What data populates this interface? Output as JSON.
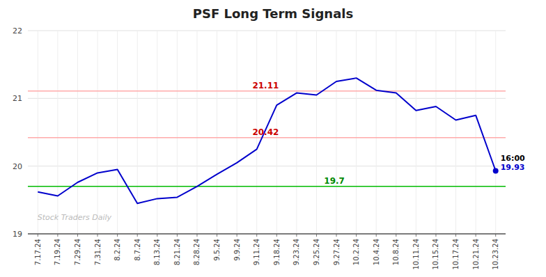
{
  "chart_data": {
    "type": "line",
    "title": "PSF Long Term Signals",
    "categories": [
      "7.17.24",
      "7.19.24",
      "7.29.24",
      "7.31.24",
      "8.2.24",
      "8.7.24",
      "8.13.24",
      "8.21.24",
      "8.28.24",
      "9.5.24",
      "9.9.24",
      "9.11.24",
      "9.18.24",
      "9.23.24",
      "9.25.24",
      "9.27.24",
      "10.2.24",
      "10.4.24",
      "10.8.24",
      "10.11.24",
      "10.15.24",
      "10.17.24",
      "10.21.24",
      "10.23.24"
    ],
    "values": [
      19.62,
      19.56,
      19.76,
      19.9,
      19.95,
      19.45,
      19.52,
      19.54,
      19.7,
      19.88,
      20.05,
      20.25,
      20.9,
      21.08,
      21.05,
      21.25,
      21.3,
      21.12,
      21.08,
      20.82,
      20.88,
      20.68,
      20.75,
      19.93
    ],
    "color": "#0000cc",
    "ylim": [
      19.0,
      22.0
    ],
    "yticks": [
      19,
      20,
      21,
      22
    ],
    "grid": true,
    "reference_lines": [
      {
        "value": 19.7,
        "color": "#00bb00",
        "label": "19.7",
        "label_color": "#008800"
      },
      {
        "value": 21.11,
        "color": "#ffaaaa",
        "label": "21.11",
        "label_color": "#cc0000"
      },
      {
        "value": 20.42,
        "color": "#ffaaaa",
        "label": "20.42",
        "label_color": "#cc0000"
      }
    ],
    "annotations": [
      {
        "text": "16:00",
        "color": "#000000"
      },
      {
        "text": "19.93",
        "color": "#0000cc"
      }
    ],
    "watermark": {
      "text": "Stock Traders Daily",
      "color": "#bbbbbb"
    }
  }
}
